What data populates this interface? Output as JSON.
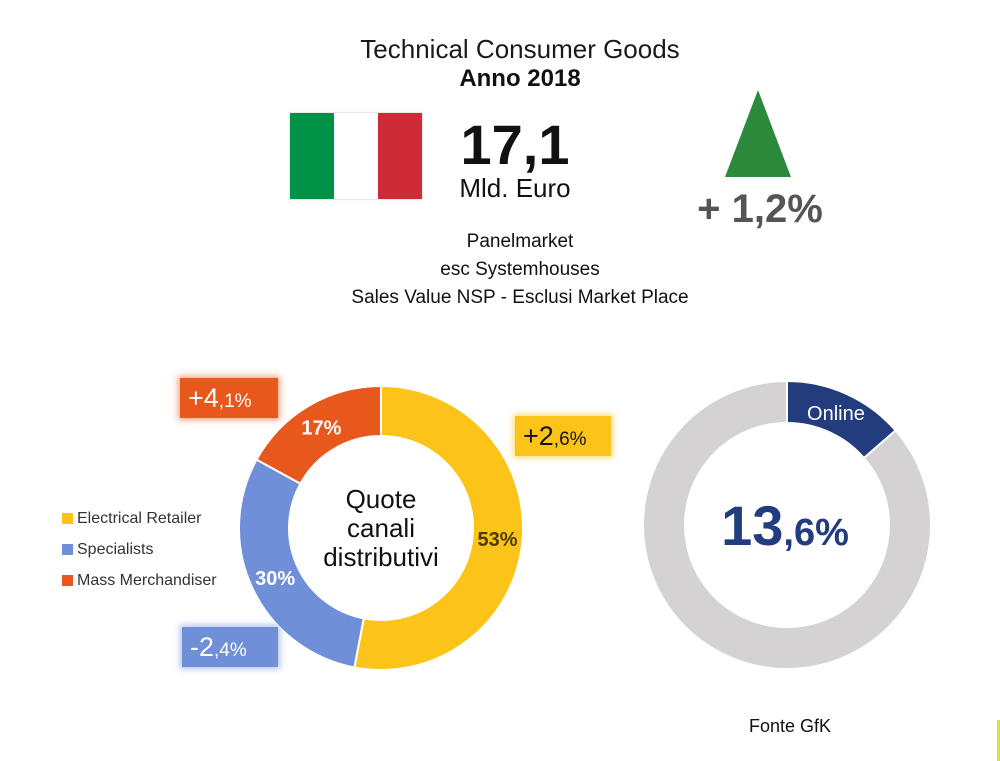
{
  "header": {
    "title": "Technical Consumer Goods",
    "subtitle": "Anno 2018",
    "value": "17,1",
    "unit": "Mld. Euro",
    "growth": "+ 1,2%",
    "info": [
      "Panelmarket",
      "esc Systemhouses",
      "Sales Value NSP - Esclusi Market Place"
    ]
  },
  "icons": {
    "flag": "italian-flag-icon",
    "arrow": "tree-up-arrow-icon"
  },
  "colors": {
    "flag_green": "#009246",
    "flag_white": "#ffffff",
    "flag_red": "#ce2b37",
    "arrow_green": "#2a8a3a",
    "electrical_retailer": "#fcc419",
    "specialists": "#6f8fd8",
    "mass_merchandiser": "#e8571c",
    "online": "#233c7d",
    "offline": "#d4d2d2"
  },
  "chart_data": [
    {
      "type": "pie",
      "style": "donut",
      "center_text": [
        "Quote",
        "canali",
        "distributivi"
      ],
      "slices": [
        {
          "name": "Electrical Retailer",
          "value": 53,
          "label": "53%",
          "change": [
            "+2",
            ",6%"
          ]
        },
        {
          "name": "Specialists",
          "value": 30,
          "label": "30%",
          "change": [
            "-2",
            ",4%"
          ]
        },
        {
          "name": "Mass Merchandiser",
          "value": 17,
          "label": "17%",
          "change": [
            "+4",
            ",1%"
          ]
        }
      ],
      "legend_position": "left"
    },
    {
      "type": "pie",
      "style": "donut",
      "slices": [
        {
          "name": "Online",
          "value": 13.6,
          "label": "Online"
        },
        {
          "value": 86.4
        }
      ],
      "center_value": [
        "13",
        ",6%"
      ]
    }
  ],
  "footer": {
    "source": "Fonte GfK"
  }
}
